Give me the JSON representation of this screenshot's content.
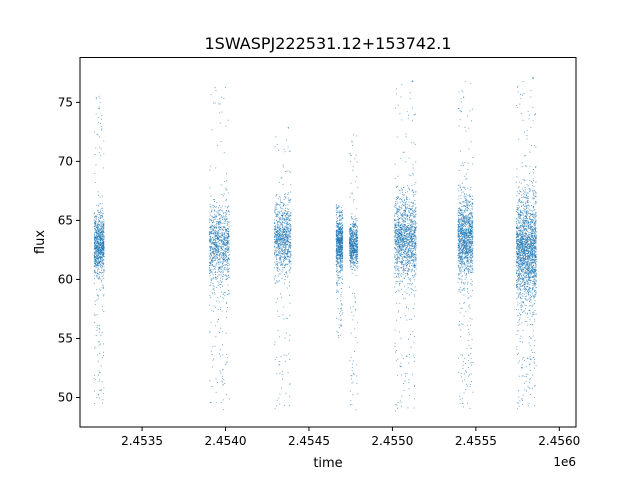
{
  "chart_data": {
    "type": "scatter",
    "title": "1SWASPJ222531.12+153742.1",
    "xlabel": "time",
    "ylabel": "flux",
    "x_offset_label": "1e6",
    "xlim": [
      2453128,
      2456100
    ],
    "ylim": [
      47.5,
      78.8
    ],
    "x_ticks": [
      2.4535,
      2.454,
      2.4545,
      2.455,
      2.4555,
      2.456
    ],
    "x_tick_labels": [
      "2.4535",
      "2.4540",
      "2.4545",
      "2.4550",
      "2.4555",
      "2.4560"
    ],
    "y_ticks": [
      50,
      55,
      60,
      65,
      70,
      75
    ],
    "y_tick_labels": [
      "50",
      "55",
      "60",
      "65",
      "70",
      "75"
    ],
    "grid": false,
    "marker_color": "#1f77b4",
    "series": [
      {
        "clusters": [
          {
            "x_start": 2453210,
            "x_end": 2453270,
            "center": 63.0,
            "spread": 1.3,
            "low_tail": 49.5,
            "high_tail": 76.0,
            "density": 1.0
          },
          {
            "x_start": 2453900,
            "x_end": 2454020,
            "center": 63.0,
            "spread": 1.7,
            "low_tail": 49.0,
            "high_tail": 76.5,
            "density": 1.1
          },
          {
            "x_start": 2454290,
            "x_end": 2454390,
            "center": 63.5,
            "spread": 1.5,
            "low_tail": 49.0,
            "high_tail": 73.0,
            "density": 1.0
          },
          {
            "x_start": 2454660,
            "x_end": 2454700,
            "center": 63.0,
            "spread": 1.2,
            "low_tail": 55.0,
            "high_tail": 66.5,
            "density": 0.8
          },
          {
            "x_start": 2454740,
            "x_end": 2454790,
            "center": 63.0,
            "spread": 0.9,
            "low_tail": 48.9,
            "high_tail": 72.3,
            "density": 0.7
          },
          {
            "x_start": 2455010,
            "x_end": 2455140,
            "center": 63.5,
            "spread": 1.8,
            "low_tail": 48.8,
            "high_tail": 77.0,
            "density": 1.5
          },
          {
            "x_start": 2455390,
            "x_end": 2455480,
            "center": 63.5,
            "spread": 1.6,
            "low_tail": 49.0,
            "high_tail": 76.8,
            "density": 1.4
          },
          {
            "x_start": 2455740,
            "x_end": 2455860,
            "center": 62.5,
            "spread": 2.2,
            "low_tail": 49.0,
            "high_tail": 77.3,
            "density": 2.2
          }
        ]
      }
    ]
  }
}
